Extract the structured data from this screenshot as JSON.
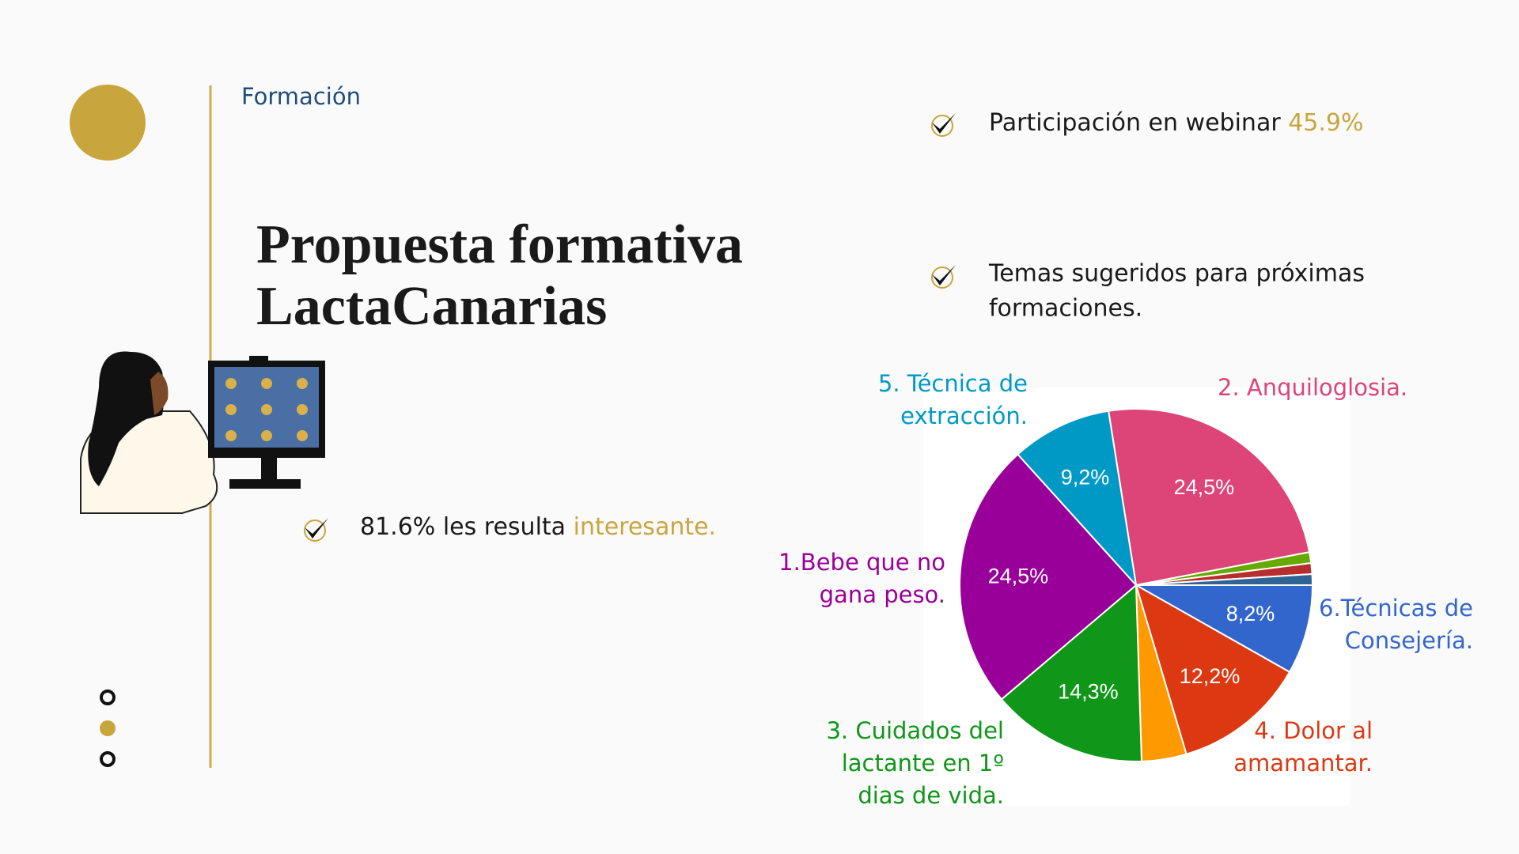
{
  "header": {
    "section": "Formación",
    "title_lines": [
      "Propuesta formativa",
      "LactaCanarias"
    ]
  },
  "bullets": {
    "interest": {
      "highlight_prefix": "81.6% les resulta",
      "highlight": "interesante."
    },
    "webinar": {
      "text": "Participación en webinar",
      "highlight": "45.9%"
    },
    "topics": {
      "lines": [
        "Temas sugeridos para próximas",
        "formaciones."
      ]
    }
  },
  "chart_data": {
    "type": "pie",
    "categories": [
      "2. Anquiloglosia.",
      null,
      null,
      null,
      "6.Técnicas de\nConsejería.",
      "4. Dolor al\namamantar.",
      null,
      "3. Cuidados del\nlactante en 1º\ndias de vida.",
      "1.Bebe que no\ngana peso.",
      "5. Técnica de\nextracción."
    ],
    "values": [
      24.5,
      1,
      1,
      1,
      8.2,
      12.2,
      4.1,
      14.3,
      24.5,
      9.2
    ],
    "value_labels": [
      "24,5%",
      null,
      null,
      null,
      "8,2%",
      "12,2%",
      null,
      "14,3%",
      "24,5%",
      "9,2%"
    ],
    "colors": [
      "#dd4477",
      "#66aa00",
      "#b82e2e",
      "#316395",
      "#3366cc",
      "#dc3912",
      "#ff9900",
      "#109618",
      "#990099",
      "#0099c6"
    ]
  }
}
